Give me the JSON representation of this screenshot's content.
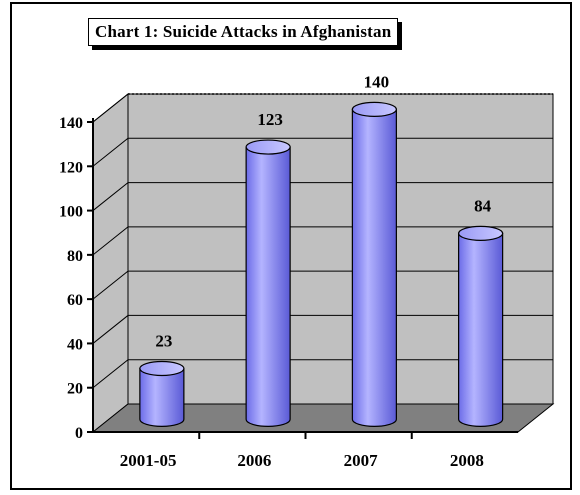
{
  "chart_data": {
    "type": "bar",
    "title": "Chart 1: Suicide Attacks in Afghanistan",
    "categories": [
      "2001-05",
      "2006",
      "2007",
      "2008"
    ],
    "values": [
      23,
      123,
      140,
      84
    ],
    "data_labels": [
      "23",
      "123",
      "140",
      "84"
    ],
    "yticks": [
      "0",
      "20",
      "40",
      "60",
      "80",
      "100",
      "120",
      "140"
    ],
    "ylim": [
      0,
      140
    ],
    "xlabel": "",
    "ylabel": "",
    "grid": true,
    "bar_color": "#9999ff",
    "wall_color": "#c0c0c0",
    "floor_color": "#808080"
  }
}
